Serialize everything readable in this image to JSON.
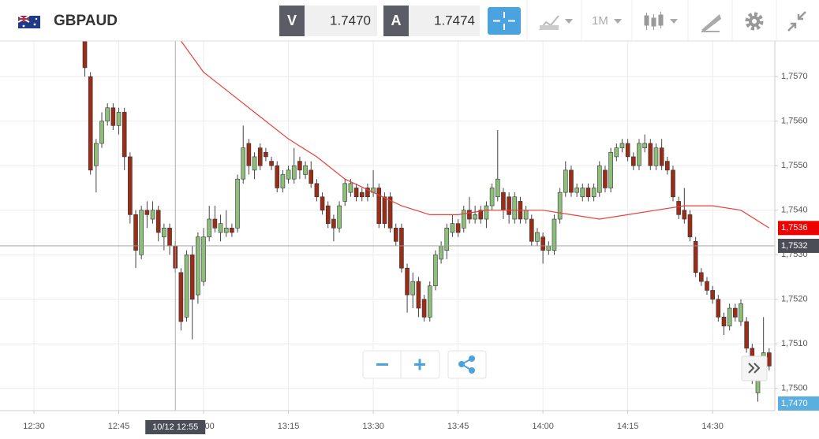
{
  "toolbar": {
    "symbol": "GBPAUD",
    "sell_label": "V",
    "sell_price": "1.7470",
    "buy_label": "A",
    "buy_price": "1.7474",
    "timeframe": "1M"
  },
  "chart_data": {
    "type": "candlestick",
    "x": [
      "12:39",
      "12:40",
      "12:41",
      "12:42",
      "12:43",
      "12:44",
      "12:45",
      "12:46",
      "12:47",
      "12:48",
      "12:49",
      "12:50",
      "12:51",
      "12:52",
      "12:53",
      "12:54",
      "12:55",
      "12:56",
      "12:57",
      "12:58",
      "12:59",
      "13:00",
      "13:01",
      "13:02",
      "13:03",
      "13:04",
      "13:05",
      "13:06",
      "13:07",
      "13:08",
      "13:09",
      "13:10",
      "13:11",
      "13:12",
      "13:13",
      "13:14",
      "13:15",
      "13:16",
      "13:17",
      "13:18",
      "13:19",
      "13:20",
      "13:21",
      "13:22",
      "13:23",
      "13:24",
      "13:25",
      "13:26",
      "13:27",
      "13:28",
      "13:29",
      "13:30",
      "13:31",
      "13:32",
      "13:33",
      "13:34",
      "13:35",
      "13:36",
      "13:37",
      "13:38",
      "13:39",
      "13:40",
      "13:41",
      "13:42",
      "13:43",
      "13:44",
      "13:45",
      "13:46",
      "13:47",
      "13:48",
      "13:49",
      "13:50",
      "13:51",
      "13:52",
      "13:53",
      "13:54",
      "13:55",
      "13:56",
      "13:57",
      "13:58",
      "13:59",
      "14:00",
      "14:01",
      "14:02",
      "14:03",
      "14:04",
      "14:05",
      "14:06",
      "14:07",
      "14:08",
      "14:09",
      "14:10",
      "14:11",
      "14:12",
      "14:13",
      "14:14",
      "14:15",
      "14:16",
      "14:17",
      "14:18",
      "14:19",
      "14:20",
      "14:21",
      "14:22",
      "14:23",
      "14:24",
      "14:25",
      "14:26",
      "14:27",
      "14:28",
      "14:29",
      "14:30",
      "14:31",
      "14:32",
      "14:33",
      "14:34",
      "14:35",
      "14:36",
      "14:37",
      "14:38",
      "14:39",
      "14:40"
    ],
    "open": [
      1.7578,
      1.757,
      1.755,
      1.7555,
      1.756,
      1.7563,
      1.7559,
      1.7562,
      1.7552,
      1.7539,
      1.753,
      1.754,
      1.7538,
      1.754,
      1.7534,
      1.7536,
      1.7532,
      1.7526,
      1.7516,
      1.753,
      1.7521,
      1.7524,
      1.7534,
      1.7538,
      1.7535,
      1.7535,
      1.7536,
      1.7536,
      1.7547,
      1.7555,
      1.7549,
      1.7554,
      1.7553,
      1.7551,
      1.755,
      1.7545,
      1.7547,
      1.7547,
      1.7551,
      1.7548,
      1.7549,
      1.7546,
      1.7543,
      1.7541,
      1.7538,
      1.7536,
      1.7542,
      1.7544,
      1.7545,
      1.7544,
      1.7545,
      1.7544,
      1.7545,
      1.7543,
      1.7543,
      1.7536,
      1.7536,
      1.7527,
      1.7521,
      1.7524,
      1.752,
      1.7516,
      1.7523,
      1.7529,
      1.7531,
      1.7535,
      1.7537,
      1.7536,
      1.754,
      1.7538,
      1.754,
      1.7538,
      1.7541,
      1.7543,
      1.7544,
      1.7543,
      1.7538,
      1.7542,
      1.7538,
      1.7538,
      1.7533,
      1.7534,
      1.7531,
      1.7531,
      1.7538,
      1.7544,
      1.7549,
      1.7544,
      1.7543,
      1.7545,
      1.7543,
      1.7544,
      1.7549,
      1.7545,
      1.7552,
      1.7554,
      1.7555,
      1.7552,
      1.755,
      1.7554,
      1.7555,
      1.755,
      1.7554,
      1.7551,
      1.7549,
      1.7542,
      1.754,
      1.7539,
      1.7533,
      1.7526,
      1.7524,
      1.7522,
      1.752,
      1.7516,
      1.7514,
      1.7518,
      1.7515,
      1.7515,
      1.7509,
      1.7499,
      1.7506,
      1.7508
    ],
    "high": [
      1.758,
      1.7571,
      1.7556,
      1.7562,
      1.7564,
      1.7564,
      1.7563,
      1.7563,
      1.7553,
      1.754,
      1.7541,
      1.7542,
      1.7542,
      1.7541,
      1.7537,
      1.7537,
      1.7533,
      1.7527,
      1.7531,
      1.7532,
      1.7535,
      1.7536,
      1.7541,
      1.7541,
      1.7539,
      1.754,
      1.7537,
      1.7548,
      1.7559,
      1.7556,
      1.7553,
      1.7555,
      1.7554,
      1.7552,
      1.7551,
      1.7549,
      1.755,
      1.7554,
      1.7552,
      1.7551,
      1.7551,
      1.7547,
      1.7544,
      1.7542,
      1.7539,
      1.7542,
      1.7547,
      1.7547,
      1.7546,
      1.7545,
      1.7546,
      1.7549,
      1.7546,
      1.7544,
      1.7544,
      1.7537,
      1.7537,
      1.7528,
      1.7526,
      1.7525,
      1.7521,
      1.7524,
      1.7531,
      1.7533,
      1.7537,
      1.7539,
      1.7538,
      1.7541,
      1.7543,
      1.7541,
      1.7541,
      1.7542,
      1.7546,
      1.7558,
      1.7545,
      1.7544,
      1.7544,
      1.7543,
      1.7541,
      1.7539,
      1.7536,
      1.7535,
      1.7533,
      1.7539,
      1.7545,
      1.7551,
      1.755,
      1.7546,
      1.7546,
      1.7546,
      1.7546,
      1.7551,
      1.755,
      1.7554,
      1.7555,
      1.7556,
      1.7556,
      1.7553,
      1.7556,
      1.7557,
      1.7556,
      1.7555,
      1.7556,
      1.7552,
      1.755,
      1.7543,
      1.7545,
      1.754,
      1.7534,
      1.7527,
      1.7525,
      1.7523,
      1.7521,
      1.7517,
      1.7519,
      1.7519,
      1.752,
      1.7516,
      1.751,
      1.7506,
      1.7516,
      1.7509
    ],
    "low": [
      1.757,
      1.7548,
      1.7544,
      1.7554,
      1.7559,
      1.7558,
      1.7557,
      1.7549,
      1.7537,
      1.7527,
      1.7529,
      1.7536,
      1.7537,
      1.7533,
      1.7531,
      1.753,
      1.7526,
      1.7513,
      1.7515,
      1.7511,
      1.7519,
      1.7523,
      1.7533,
      1.7535,
      1.7533,
      1.7534,
      1.7534,
      1.7535,
      1.7546,
      1.7548,
      1.7547,
      1.7549,
      1.7551,
      1.7549,
      1.7544,
      1.7544,
      1.7546,
      1.7546,
      1.7547,
      1.7547,
      1.7545,
      1.7542,
      1.7539,
      1.7536,
      1.7533,
      1.7535,
      1.7541,
      1.7543,
      1.7542,
      1.7542,
      1.7542,
      1.7543,
      1.7536,
      1.7536,
      1.7535,
      1.7532,
      1.7526,
      1.7517,
      1.7518,
      1.7516,
      1.7515,
      1.7515,
      1.7522,
      1.7528,
      1.7529,
      1.7534,
      1.7534,
      1.7535,
      1.7537,
      1.7537,
      1.7537,
      1.7536,
      1.754,
      1.7542,
      1.7538,
      1.7537,
      1.7537,
      1.7537,
      1.7537,
      1.7532,
      1.7532,
      1.7528,
      1.753,
      1.753,
      1.7537,
      1.7543,
      1.7543,
      1.7543,
      1.7542,
      1.7542,
      1.7542,
      1.7543,
      1.7544,
      1.7544,
      1.7551,
      1.7553,
      1.7551,
      1.7549,
      1.7549,
      1.7553,
      1.7549,
      1.7549,
      1.7549,
      1.7548,
      1.7542,
      1.7538,
      1.7537,
      1.7533,
      1.7525,
      1.7523,
      1.7521,
      1.7519,
      1.7515,
      1.7512,
      1.7513,
      1.7515,
      1.7514,
      1.7508,
      1.7501,
      1.7497,
      1.7505,
      1.7504
    ],
    "close": [
      1.7572,
      1.7549,
      1.7555,
      1.756,
      1.7563,
      1.7559,
      1.7562,
      1.7552,
      1.7539,
      1.7531,
      1.754,
      1.7539,
      1.754,
      1.7535,
      1.7536,
      1.7532,
      1.7527,
      1.7515,
      1.753,
      1.752,
      1.7534,
      1.7534,
      1.7538,
      1.7536,
      1.7537,
      1.7536,
      1.7535,
      1.7547,
      1.7554,
      1.755,
      1.7552,
      1.755,
      1.7552,
      1.755,
      1.7545,
      1.7548,
      1.7549,
      1.755,
      1.7549,
      1.755,
      1.7546,
      1.7543,
      1.754,
      1.7537,
      1.7536,
      1.7541,
      1.7546,
      1.7546,
      1.7543,
      1.7543,
      1.7543,
      1.7545,
      1.7537,
      1.7537,
      1.7536,
      1.7533,
      1.7527,
      1.7521,
      1.7524,
      1.7518,
      1.7516,
      1.7523,
      1.753,
      1.7532,
      1.7536,
      1.7537,
      1.7535,
      1.754,
      1.7538,
      1.7539,
      1.7538,
      1.7541,
      1.7545,
      1.7547,
      1.754,
      1.7539,
      1.7543,
      1.7538,
      1.754,
      1.7533,
      1.7535,
      1.7531,
      1.7532,
      1.7538,
      1.7544,
      1.7549,
      1.7544,
      1.7545,
      1.7545,
      1.7543,
      1.7545,
      1.755,
      1.7545,
      1.7553,
      1.7554,
      1.7555,
      1.7552,
      1.755,
      1.7555,
      1.7555,
      1.755,
      1.7554,
      1.755,
      1.7549,
      1.7543,
      1.7539,
      1.7538,
      1.7534,
      1.7526,
      1.7524,
      1.7522,
      1.752,
      1.7516,
      1.7514,
      1.7518,
      1.7516,
      1.7519,
      1.7509,
      1.7502,
      1.7505,
      1.7508,
      1.7505
    ],
    "up_color": "#8dbf7a",
    "down_color": "#9a2d17",
    "moving_average": {
      "color": "#e8413b",
      "x": [
        "12:56",
        "13:00",
        "13:05",
        "13:10",
        "13:15",
        "13:20",
        "13:25",
        "13:30",
        "13:35",
        "13:40",
        "13:45",
        "13:50",
        "13:55",
        "14:00",
        "14:05",
        "14:10",
        "14:15",
        "14:20",
        "14:25",
        "14:30",
        "14:35",
        "14:40"
      ],
      "values": [
        1.7578,
        1.7571,
        1.7566,
        1.7561,
        1.7556,
        1.7552,
        1.7547,
        1.7544,
        1.7541,
        1.7539,
        1.7539,
        1.754,
        1.754,
        1.754,
        1.7539,
        1.7538,
        1.7539,
        1.754,
        1.7541,
        1.7541,
        1.754,
        1.7536
      ]
    },
    "xlim": [
      "12:24",
      "14:41"
    ],
    "xticks": [
      "12:30",
      "12:45",
      "13:00",
      "13:15",
      "13:30",
      "13:45",
      "14:00",
      "14:15",
      "14:30"
    ],
    "ylim": [
      1.7495,
      1.7578
    ],
    "yticks": [
      {
        "value": 1.75,
        "label": "1,7500"
      },
      {
        "value": 1.751,
        "label": "1,7510"
      },
      {
        "value": 1.752,
        "label": "1,7520"
      },
      {
        "value": 1.753,
        "label": "1,7530"
      },
      {
        "value": 1.754,
        "label": "1,7540"
      },
      {
        "value": 1.755,
        "label": "1,7550"
      },
      {
        "value": 1.756,
        "label": "1,7560"
      },
      {
        "value": 1.757,
        "label": "1,7570"
      }
    ],
    "grid": true,
    "ma_price": {
      "value": 1.7536,
      "label": "1,7536",
      "color": "#ee0000"
    },
    "crosshair": {
      "time": "12:55",
      "time_label": "10/12 12:55",
      "price": 1.7532,
      "price_label": "1,7532"
    },
    "bid_label": "1,7470"
  }
}
